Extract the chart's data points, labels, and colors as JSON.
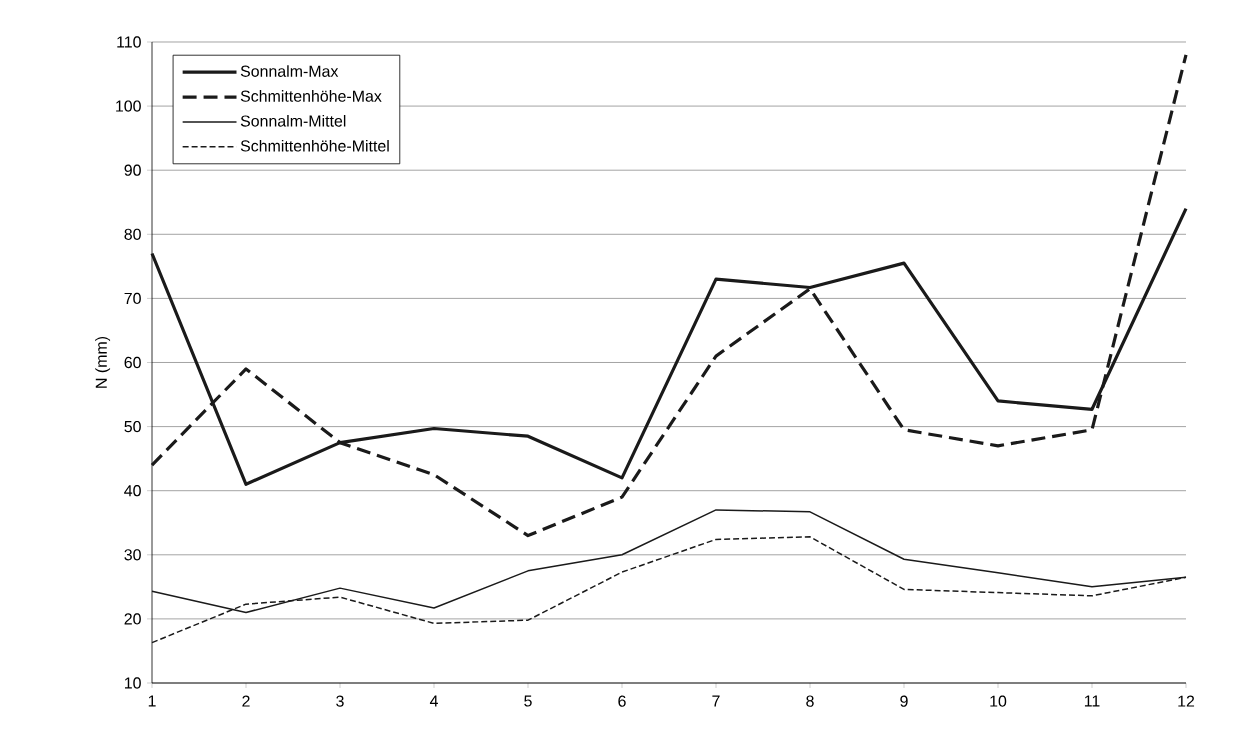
{
  "chart_data": {
    "type": "line",
    "ylabel": "N (mm)",
    "x": [
      1,
      2,
      3,
      4,
      5,
      6,
      7,
      8,
      9,
      10,
      11,
      12
    ],
    "series": [
      {
        "name": "Sonnalm-Max",
        "color": "#1a1a1a",
        "line_style": "solid",
        "values": [
          77,
          41,
          47.5,
          49.7,
          48.5,
          42,
          73,
          71.7,
          75.5,
          54,
          52.7,
          84
        ]
      },
      {
        "name": "Schmittenhöhe-Max",
        "color": "#1a1a1a",
        "line_style": "dashed",
        "values": [
          44,
          59,
          47.5,
          42.5,
          33,
          39,
          61,
          71.5,
          49.5,
          47,
          49.5,
          108
        ]
      },
      {
        "name": "Sonnalm-Mittel",
        "color": "#1a1a1a",
        "line_style": "solid",
        "values": [
          24.3,
          21,
          24.8,
          21.7,
          27.5,
          30,
          37,
          36.7,
          29.3,
          27.2,
          25,
          26.5
        ]
      },
      {
        "name": "Schmittenhöhe-Mittel",
        "color": "#1a1a1a",
        "line_style": "dashed",
        "values": [
          16.3,
          22.3,
          23.4,
          19.3,
          19.8,
          27.3,
          32.4,
          32.8,
          24.6,
          24.1,
          23.6,
          26.5
        ]
      }
    ],
    "xlim": [
      1,
      12
    ],
    "xticks": [
      1,
      2,
      3,
      4,
      5,
      6,
      7,
      8,
      9,
      10,
      11,
      12
    ],
    "ylim": [
      10,
      110
    ],
    "yticks": [
      10,
      20,
      30,
      40,
      50,
      60,
      70,
      80,
      90,
      100,
      110
    ],
    "grid": "y",
    "legend": "top left",
    "marker": "none"
  }
}
